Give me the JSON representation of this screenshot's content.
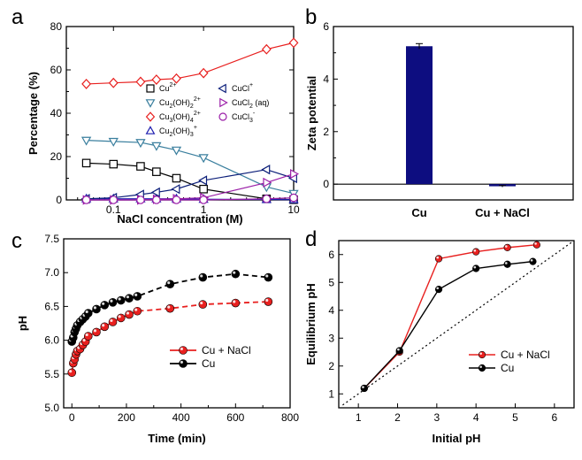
{
  "chart_data": [
    {
      "panel": "a",
      "type": "line",
      "xscale": "log",
      "xlabel": "NaCl concentration (M)",
      "ylabel": "Percentage (%)",
      "xlim": [
        0.03,
        10
      ],
      "ylim": [
        0,
        80
      ],
      "xticks": [
        "0.1",
        "1",
        "10"
      ],
      "yticks": [
        "0",
        "20",
        "40",
        "60",
        "80"
      ],
      "x": [
        0.05,
        0.1,
        0.2,
        0.3,
        0.5,
        1,
        5,
        10
      ],
      "series": [
        {
          "name": "Cu²⁺",
          "label_base": "Cu",
          "label_sup": "2+",
          "color": "#000000",
          "marker": "square",
          "values": [
            17,
            16.5,
            15.5,
            13,
            10,
            5,
            0.5,
            0.1
          ]
        },
        {
          "name": "Cu₂(OH)₂²⁺",
          "label_base": "Cu",
          "label_sub1": "2",
          "label_mid": "(OH)",
          "label_sub2": "2",
          "label_sup": "2+",
          "color": "#3a7f9e",
          "marker": "triangle-down",
          "values": [
            27.5,
            27,
            26.5,
            25,
            23,
            19.5,
            6,
            3
          ]
        },
        {
          "name": "Cu₃(OH)₄²⁺",
          "label_base": "Cu",
          "label_sub1": "3",
          "label_mid": "(OH)",
          "label_sub2": "4",
          "label_sup": "2+",
          "color": "#e8201f",
          "marker": "diamond",
          "values": [
            53.5,
            54,
            54.5,
            55.5,
            56,
            58.5,
            69.5,
            72.5
          ]
        },
        {
          "name": "Cu₂(OH)₃⁺",
          "label_base": "Cu",
          "label_sub1": "2",
          "label_mid": "(OH)",
          "label_sub2": "3",
          "label_sup": "+",
          "color": "#1f1fb0",
          "marker": "triangle-up",
          "values": [
            0.5,
            0.5,
            0.5,
            0.5,
            0.5,
            0.3,
            0.2,
            0.1
          ]
        },
        {
          "name": "CuCl⁺",
          "label_base": "CuCl",
          "label_sup": "+",
          "color": "#0c1f7a",
          "marker": "triangle-left",
          "values": [
            0.5,
            1,
            2.5,
            3.5,
            5,
            9,
            14,
            10
          ]
        },
        {
          "name": "CuCl₂ (aq)",
          "label_base": "CuCl",
          "label_sub1": "2",
          "label_mid": " (aq)",
          "color": "#9b1fa8",
          "marker": "triangle-right",
          "values": [
            0,
            0,
            0,
            0.3,
            0.5,
            1,
            8,
            12
          ]
        },
        {
          "name": "CuCl₃⁻",
          "label_base": "CuCl",
          "label_sub1": "3",
          "label_sup": "-",
          "color": "#9b1fa8",
          "marker": "circle",
          "values": [
            0,
            0,
            0,
            0,
            0,
            0,
            0.5,
            1
          ]
        }
      ]
    },
    {
      "panel": "b",
      "type": "bar",
      "categories": [
        "Cu",
        "Cu + NaCl"
      ],
      "values": [
        5.25,
        -0.08
      ],
      "errors": [
        0.1,
        0.03
      ],
      "color": "#0d0d80",
      "ylabel": "Zeta potential",
      "ylim": [
        -0.6,
        6
      ],
      "yticks": [
        "0",
        "2",
        "4",
        "6"
      ]
    },
    {
      "panel": "c",
      "type": "scatter",
      "xlabel": "Time (min)",
      "ylabel": "pH",
      "xlim": [
        -30,
        800
      ],
      "ylim": [
        5.0,
        7.5
      ],
      "xticks": [
        "0",
        "200",
        "400",
        "600",
        "800"
      ],
      "yticks": [
        "5.0",
        "5.5",
        "6.0",
        "6.5",
        "7.0",
        "7.5"
      ],
      "series": [
        {
          "name": "Cu + NaCl",
          "color": "#e8201f",
          "x": [
            0,
            5,
            10,
            15,
            20,
            30,
            40,
            50,
            60,
            90,
            120,
            150,
            180,
            210,
            240,
            360,
            480,
            600,
            720
          ],
          "y": [
            5.52,
            5.66,
            5.72,
            5.79,
            5.84,
            5.87,
            5.93,
            5.98,
            6.06,
            6.12,
            6.2,
            6.27,
            6.33,
            6.38,
            6.43,
            6.47,
            6.53,
            6.55,
            6.57
          ]
        },
        {
          "name": "Cu",
          "color": "#000000",
          "x": [
            0,
            5,
            10,
            15,
            20,
            30,
            40,
            50,
            60,
            90,
            120,
            150,
            180,
            210,
            240,
            360,
            480,
            600,
            720
          ],
          "y": [
            5.98,
            6.04,
            6.12,
            6.17,
            6.22,
            6.27,
            6.31,
            6.35,
            6.4,
            6.46,
            6.52,
            6.56,
            6.59,
            6.62,
            6.65,
            6.83,
            6.93,
            6.98,
            6.93
          ]
        }
      ]
    },
    {
      "panel": "d",
      "type": "line",
      "xlabel": "Initial pH",
      "ylabel": "Equilibrium pH",
      "xlim": [
        0.5,
        6.5
      ],
      "ylim": [
        0.5,
        6.5
      ],
      "xticks": [
        "1",
        "2",
        "3",
        "4",
        "5",
        "6"
      ],
      "yticks": [
        "1",
        "2",
        "3",
        "4",
        "5",
        "6"
      ],
      "reference": "y = x (dotted)",
      "series": [
        {
          "name": "Cu + NaCl",
          "color": "#e8201f",
          "x": [
            1.15,
            2.05,
            3.05,
            4.0,
            4.8,
            5.55
          ],
          "y": [
            1.2,
            2.5,
            5.85,
            6.1,
            6.25,
            6.35
          ]
        },
        {
          "name": "Cu",
          "color": "#000000",
          "x": [
            1.15,
            2.05,
            3.05,
            4.0,
            4.8,
            5.45
          ],
          "y": [
            1.2,
            2.55,
            4.75,
            5.5,
            5.65,
            5.75
          ]
        }
      ]
    }
  ],
  "labels": {
    "a": "a",
    "b": "b",
    "c": "c",
    "d": "d"
  }
}
